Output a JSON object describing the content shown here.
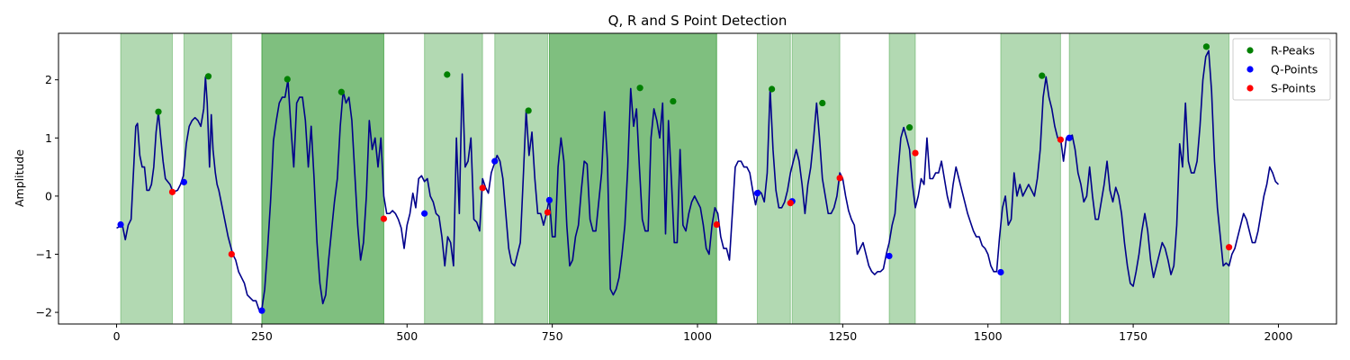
{
  "chart_data": {
    "type": "line",
    "title": "Q, R and S Point Detection",
    "xlabel": "",
    "ylabel": "Amplitude",
    "xlim": [
      -100,
      2100
    ],
    "ylim": [
      -2.2,
      2.8
    ],
    "xticks": [
      0,
      250,
      500,
      750,
      1000,
      1250,
      1500,
      1750,
      2000
    ],
    "yticks": [
      -2,
      -1,
      0,
      1,
      2
    ],
    "ytick_labels": [
      "−2",
      "−1",
      "0",
      "1",
      "2"
    ],
    "grid": false,
    "legend_position": "top-right",
    "line_color": "#00008b",
    "signal_x": [
      0,
      10,
      15,
      20,
      25,
      30,
      33,
      36,
      40,
      44,
      48,
      52,
      56,
      60,
      64,
      68,
      72,
      76,
      80,
      84,
      88,
      92,
      96,
      100,
      105,
      110,
      115,
      120,
      125,
      130,
      135,
      140,
      145,
      150,
      153,
      156,
      160,
      163,
      166,
      170,
      173,
      176,
      180,
      184,
      188,
      192,
      196,
      200,
      205,
      210,
      215,
      220,
      225,
      230,
      235,
      240,
      245,
      250,
      255,
      260,
      265,
      268,
      270,
      275,
      280,
      285,
      290,
      295,
      300,
      305,
      310,
      315,
      320,
      325,
      330,
      335,
      340,
      345,
      350,
      355,
      360,
      365,
      370,
      375,
      380,
      385,
      390,
      395,
      400,
      405,
      410,
      415,
      420,
      425,
      430,
      435,
      440,
      445,
      450,
      455,
      460,
      465,
      470,
      475,
      480,
      485,
      490,
      495,
      500,
      505,
      510,
      515,
      520,
      525,
      530,
      535,
      540,
      545,
      550,
      555,
      560,
      565,
      570,
      575,
      580,
      585,
      590,
      595,
      600,
      605,
      610,
      615,
      620,
      625,
      630,
      635,
      640,
      645,
      650,
      655,
      660,
      665,
      670,
      675,
      680,
      685,
      690,
      695,
      700,
      705,
      710,
      715,
      720,
      725,
      730,
      735,
      740,
      745,
      750,
      755,
      760,
      765,
      770,
      775,
      780,
      785,
      790,
      795,
      800,
      805,
      810,
      815,
      820,
      825,
      830,
      835,
      840,
      845,
      850,
      855,
      860,
      865,
      870,
      875,
      880,
      885,
      890,
      895,
      900,
      905,
      910,
      915,
      920,
      925,
      930,
      935,
      940,
      945,
      950,
      955,
      960,
      965,
      970,
      975,
      980,
      985,
      990,
      995,
      1000,
      1005,
      1010,
      1015,
      1020,
      1025,
      1030,
      1035,
      1040,
      1045,
      1050,
      1055,
      1060,
      1065,
      1070,
      1075,
      1080,
      1085,
      1090,
      1095,
      1100,
      1105,
      1110,
      1115,
      1120,
      1125,
      1130,
      1135,
      1140,
      1145,
      1150,
      1155,
      1160,
      1165,
      1170,
      1175,
      1180,
      1185,
      1190,
      1195,
      1200,
      1205,
      1210,
      1215,
      1220,
      1225,
      1230,
      1235,
      1240,
      1245,
      1250,
      1255,
      1260,
      1265,
      1270,
      1275,
      1280,
      1285,
      1290,
      1295,
      1300,
      1305,
      1310,
      1315,
      1320,
      1325,
      1330,
      1335,
      1340,
      1345,
      1350,
      1355,
      1360,
      1365,
      1370,
      1375,
      1380,
      1385,
      1390,
      1395,
      1400,
      1405,
      1410,
      1415,
      1420,
      1425,
      1430,
      1435,
      1440,
      1445,
      1450,
      1455,
      1460,
      1465,
      1470,
      1475,
      1480,
      1485,
      1490,
      1495,
      1500,
      1505,
      1510,
      1515,
      1520,
      1525,
      1530,
      1535,
      1540,
      1545,
      1550,
      1555,
      1560,
      1565,
      1570,
      1575,
      1580,
      1585,
      1590,
      1595,
      1600,
      1605,
      1610,
      1615,
      1620,
      1625,
      1630,
      1635,
      1640,
      1645,
      1650,
      1655,
      1660,
      1665,
      1670,
      1675,
      1680,
      1685,
      1690,
      1695,
      1700,
      1705,
      1710,
      1715,
      1720,
      1725,
      1730,
      1735,
      1740,
      1745,
      1750,
      1755,
      1760,
      1765,
      1770,
      1775,
      1780,
      1785,
      1790,
      1795,
      1800,
      1805,
      1810,
      1815,
      1820,
      1825,
      1830,
      1835,
      1840,
      1845,
      1850,
      1855,
      1860,
      1865,
      1870,
      1875,
      1880,
      1885,
      1890,
      1895,
      1900,
      1905,
      1910,
      1915,
      1920,
      1925,
      1930,
      1935,
      1940,
      1945,
      1950,
      1955,
      1960,
      1965,
      1970,
      1975,
      1980,
      1985,
      1990,
      1995,
      2000
    ],
    "signal_y": [
      -0.55,
      -0.5,
      -0.75,
      -0.5,
      -0.4,
      0.6,
      1.2,
      1.25,
      0.7,
      0.5,
      0.5,
      0.1,
      0.1,
      0.2,
      0.5,
      1.1,
      1.45,
      1.0,
      0.6,
      0.3,
      0.25,
      0.2,
      0.1,
      0.08,
      0.1,
      0.2,
      0.35,
      0.9,
      1.2,
      1.3,
      1.35,
      1.3,
      1.2,
      1.5,
      2.05,
      1.6,
      0.5,
      1.4,
      0.8,
      0.4,
      0.2,
      0.1,
      -0.1,
      -0.3,
      -0.5,
      -0.7,
      -0.85,
      -1.0,
      -1.1,
      -1.3,
      -1.4,
      -1.5,
      -1.7,
      -1.75,
      -1.8,
      -1.8,
      -1.95,
      -1.95,
      -1.6,
      -0.9,
      -0.1,
      0.5,
      0.95,
      1.3,
      1.6,
      1.7,
      1.7,
      2.0,
      1.2,
      0.5,
      1.6,
      1.7,
      1.7,
      1.3,
      0.5,
      1.2,
      0.3,
      -0.8,
      -1.5,
      -1.85,
      -1.7,
      -1.1,
      -0.6,
      -0.1,
      0.3,
      1.2,
      1.8,
      1.6,
      1.7,
      1.3,
      0.4,
      -0.5,
      -1.1,
      -0.8,
      0.0,
      1.3,
      0.8,
      1.0,
      0.5,
      1.0,
      0.0,
      -0.3,
      -0.3,
      -0.25,
      -0.3,
      -0.4,
      -0.55,
      -0.9,
      -0.5,
      -0.3,
      0.05,
      -0.2,
      0.3,
      0.35,
      0.25,
      0.3,
      0.0,
      -0.1,
      -0.3,
      -0.35,
      -0.7,
      -1.2,
      -0.7,
      -0.8,
      -1.2,
      1.0,
      -0.3,
      2.1,
      0.5,
      0.6,
      1.0,
      -0.4,
      -0.45,
      -0.6,
      0.3,
      0.15,
      0.05,
      0.4,
      0.55,
      0.7,
      0.6,
      0.3,
      -0.3,
      -0.9,
      -1.15,
      -1.2,
      -1.0,
      -0.8,
      0.3,
      1.47,
      0.7,
      1.1,
      0.3,
      -0.3,
      -0.3,
      -0.5,
      -0.3,
      -0.05,
      -0.7,
      -0.7,
      0.5,
      1.0,
      0.6,
      -0.5,
      -1.2,
      -1.1,
      -0.7,
      -0.5,
      0.1,
      0.6,
      0.55,
      -0.4,
      -0.6,
      -0.6,
      -0.1,
      0.4,
      1.45,
      0.6,
      -1.6,
      -1.7,
      -1.6,
      -1.4,
      -1.0,
      -0.5,
      0.5,
      1.85,
      1.2,
      1.5,
      0.5,
      -0.4,
      -0.6,
      -0.6,
      1.0,
      1.5,
      1.3,
      1.0,
      1.6,
      -0.65,
      1.3,
      0.3,
      -0.8,
      -0.8,
      0.8,
      -0.5,
      -0.6,
      -0.3,
      -0.1,
      0.0,
      -0.1,
      -0.2,
      -0.5,
      -0.9,
      -1.0,
      -0.5,
      -0.2,
      -0.3,
      -0.7,
      -0.9,
      -0.9,
      -1.1,
      -0.3,
      0.5,
      0.6,
      0.6,
      0.5,
      0.5,
      0.4,
      0.1,
      -0.15,
      0.1,
      0.05,
      -0.1,
      0.4,
      1.85,
      0.8,
      0.1,
      -0.2,
      -0.2,
      -0.1,
      0.1,
      0.4,
      0.6,
      0.8,
      0.6,
      0.2,
      -0.3,
      0.2,
      0.5,
      1.0,
      1.6,
      1.0,
      0.3,
      0.0,
      -0.3,
      -0.3,
      -0.2,
      0.0,
      0.4,
      0.3,
      0.0,
      -0.25,
      -0.4,
      -0.5,
      -1.0,
      -0.9,
      -0.8,
      -1.0,
      -1.2,
      -1.3,
      -1.35,
      -1.3,
      -1.3,
      -1.25,
      -1.0,
      -0.8,
      -0.5,
      -0.3,
      0.4,
      1.0,
      1.18,
      1.0,
      0.8,
      0.2,
      -0.2,
      0.0,
      0.3,
      0.2,
      1.0,
      0.3,
      0.3,
      0.4,
      0.4,
      0.6,
      0.3,
      0.0,
      -0.2,
      0.2,
      0.5,
      0.3,
      0.1,
      -0.1,
      -0.3,
      -0.45,
      -0.6,
      -0.7,
      -0.7,
      -0.85,
      -0.9,
      -1.0,
      -1.2,
      -1.3,
      -1.3,
      -0.7,
      -0.2,
      0.0,
      -0.5,
      -0.4,
      0.4,
      0.0,
      0.2,
      0.0,
      0.1,
      0.2,
      0.1,
      0.0,
      0.3,
      0.8,
      1.7,
      2.05,
      1.7,
      1.5,
      1.2,
      1.0,
      1.0,
      0.6,
      1.0,
      1.0,
      1.05,
      0.8,
      0.4,
      0.2,
      -0.1,
      0.0,
      0.5,
      0.0,
      -0.4,
      -0.4,
      -0.1,
      0.2,
      0.6,
      0.1,
      -0.1,
      0.15,
      0.0,
      -0.3,
      -0.8,
      -1.2,
      -1.5,
      -1.55,
      -1.3,
      -1.0,
      -0.6,
      -0.3,
      -0.6,
      -1.1,
      -1.4,
      -1.2,
      -1.0,
      -0.8,
      -0.9,
      -1.1,
      -1.35,
      -1.2,
      -0.5,
      0.9,
      0.5,
      1.6,
      0.6,
      0.4,
      0.4,
      0.6,
      1.2,
      2.0,
      2.4,
      2.5,
      1.8,
      0.6,
      -0.2,
      -0.7,
      -1.2,
      -1.15,
      -1.2,
      -1.0,
      -0.9,
      -0.7,
      -0.5,
      -0.3,
      -0.4,
      -0.6,
      -0.8,
      -0.8,
      -0.6,
      -0.3,
      0.0,
      0.2,
      0.5,
      0.4,
      0.25,
      0.2
    ],
    "shaded_regions": [
      {
        "x0": 7,
        "x1": 96,
        "shade": "light"
      },
      {
        "x0": 116,
        "x1": 198,
        "shade": "light"
      },
      {
        "x0": 250,
        "x1": 460,
        "shade": "dark"
      },
      {
        "x0": 530,
        "x1": 630,
        "shade": "light"
      },
      {
        "x0": 651,
        "x1": 742,
        "shade": "light"
      },
      {
        "x0": 745,
        "x1": 1033,
        "shade": "dark"
      },
      {
        "x0": 1103,
        "x1": 1160,
        "shade": "light"
      },
      {
        "x0": 1163,
        "x1": 1245,
        "shade": "light"
      },
      {
        "x0": 1330,
        "x1": 1375,
        "shade": "light"
      },
      {
        "x0": 1522,
        "x1": 1625,
        "shade": "light"
      },
      {
        "x0": 1640,
        "x1": 1915,
        "shade": "light"
      }
    ],
    "series": [
      {
        "name": "R-Peaks",
        "color": "#008000",
        "x": [
          72,
          158,
          294,
          387,
          569,
          709,
          901,
          958,
          1128,
          1215,
          1365,
          1593,
          1876
        ],
        "y": [
          1.45,
          2.06,
          2.01,
          1.79,
          2.09,
          1.47,
          1.86,
          1.63,
          1.84,
          1.6,
          1.18,
          2.07,
          2.57
        ]
      },
      {
        "name": "Q-Points",
        "color": "#0000ff",
        "x": [
          7,
          116,
          250,
          530,
          651,
          745,
          1103,
          1163,
          1330,
          1522,
          1640
        ],
        "y": [
          -0.49,
          0.24,
          -1.97,
          -0.3,
          0.6,
          -0.07,
          0.05,
          -0.09,
          -1.03,
          -1.31,
          1.0
        ]
      },
      {
        "name": "S-Points",
        "color": "#ff0000",
        "x": [
          96,
          198,
          460,
          630,
          742,
          1033,
          1160,
          1245,
          1375,
          1625,
          1915
        ],
        "y": [
          0.07,
          -1.0,
          -0.39,
          0.14,
          -0.28,
          -0.49,
          -0.12,
          0.31,
          0.74,
          0.97,
          -0.88
        ]
      }
    ]
  }
}
